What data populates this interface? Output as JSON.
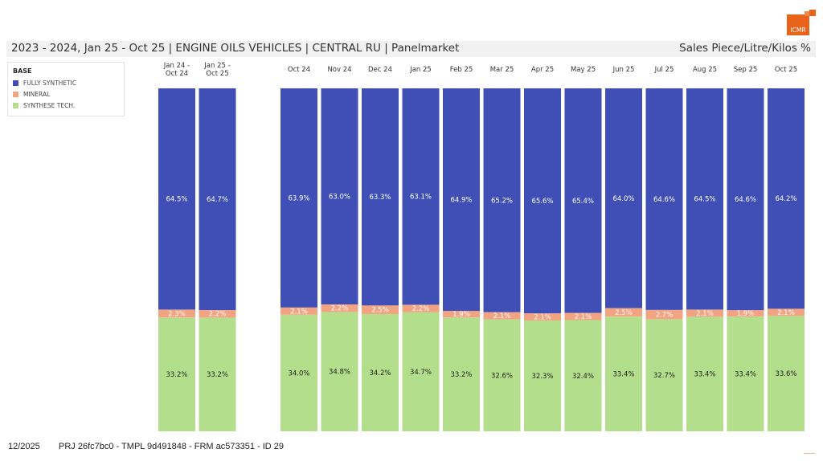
{
  "header": {
    "title": "2023 - 2024, Jan 25 - Oct 25 | ENGINE OILS VEHICLES | CENTRAL RU | Panelmarket",
    "measure": "Sales Piece/Litre/Kilos %",
    "logo_text": "ICMR",
    "logo_color": "#e8641b"
  },
  "footer": {
    "date": "12/2025",
    "ids": "PRJ 26fc7bc0 - TMPL 9d491848 - FRM ac573351 - ID 29"
  },
  "chart_data": {
    "type": "bar",
    "stacked": true,
    "percent": true,
    "title": "2023 - 2024, Jan 25 - Oct 25 | ENGINE OILS VEHICLES | CENTRAL RU | Panelmarket",
    "ylabel": "Sales Piece/Litre/Kilos %",
    "ylim": [
      0,
      100
    ],
    "grid": false,
    "legend": {
      "title": "BASE",
      "position": "top-left",
      "entries": [
        "FULLY SYNTHETIC",
        "MINERAL",
        "SYNTHESE TECH."
      ]
    },
    "categories": [
      "Jan 24 - Oct 24",
      "Jan 25 - Oct 25",
      "Oct 24",
      "Nov 24",
      "Dec 24",
      "Jan 25",
      "Feb 25",
      "Mar 25",
      "Apr 25",
      "May 25",
      "Jun 25",
      "Jul 25",
      "Aug 25",
      "Sep 25",
      "Oct 25"
    ],
    "category_labels": [
      [
        "Jan 24 -",
        "Oct 24"
      ],
      [
        "Jan 25 -",
        "Oct 25"
      ],
      [
        "Oct 24"
      ],
      [
        "Nov 24"
      ],
      [
        "Dec 24"
      ],
      [
        "Jan 25"
      ],
      [
        "Feb 25"
      ],
      [
        "Mar 25"
      ],
      [
        "Apr 25"
      ],
      [
        "May 25"
      ],
      [
        "Jun 25"
      ],
      [
        "Jul 25"
      ],
      [
        "Aug 25"
      ],
      [
        "Sep 25"
      ],
      [
        "Oct 25"
      ]
    ],
    "group_gap_after_index": 1,
    "series": [
      {
        "name": "SYNTHESE TECH.",
        "color": "#b3de8c",
        "label_color": "#222222",
        "values": [
          33.2,
          33.2,
          34.0,
          34.8,
          34.2,
          34.7,
          33.2,
          32.6,
          32.3,
          32.4,
          33.4,
          32.7,
          33.4,
          33.4,
          33.6
        ]
      },
      {
        "name": "MINERAL",
        "color": "#f2a382",
        "label_color": "#ffffff",
        "values": [
          2.3,
          2.2,
          2.1,
          2.2,
          2.5,
          2.2,
          1.9,
          2.1,
          2.1,
          2.1,
          2.5,
          2.7,
          2.1,
          1.9,
          2.1
        ]
      },
      {
        "name": "FULLY SYNTHETIC",
        "color": "#3f4fb5",
        "label_color": "#ffffff",
        "values": [
          64.5,
          64.7,
          63.9,
          63.0,
          63.3,
          63.1,
          64.9,
          65.2,
          65.6,
          65.4,
          64.0,
          64.6,
          64.5,
          64.6,
          64.2
        ]
      }
    ]
  }
}
